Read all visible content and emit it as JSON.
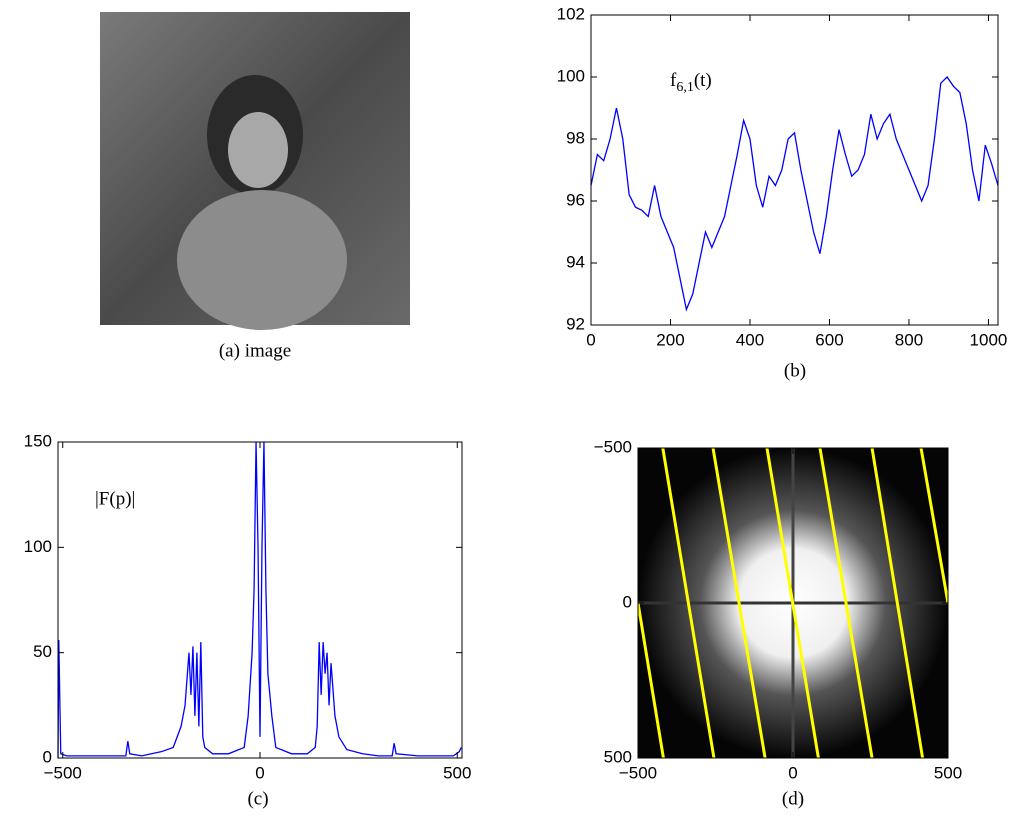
{
  "chart_data": [
    {
      "type": "image",
      "caption": "(a)  image"
    },
    {
      "type": "line",
      "caption": "(b)",
      "annotation": {
        "base": "f",
        "sub": "6,1",
        "arg": "(t)"
      },
      "x": [
        0,
        16,
        32,
        48,
        64,
        80,
        96,
        112,
        128,
        144,
        160,
        176,
        192,
        208,
        224,
        240,
        256,
        272,
        288,
        304,
        320,
        336,
        352,
        368,
        384,
        400,
        416,
        432,
        448,
        464,
        480,
        496,
        512,
        528,
        544,
        560,
        576,
        592,
        608,
        624,
        640,
        656,
        672,
        688,
        704,
        720,
        736,
        752,
        768,
        784,
        800,
        816,
        832,
        848,
        864,
        880,
        896,
        912,
        928,
        944,
        960,
        976,
        992,
        1008,
        1024
      ],
      "series": [
        {
          "color": "#0000ff",
          "values": [
            96.5,
            97.5,
            97.3,
            98,
            99,
            98,
            96.2,
            95.8,
            95.7,
            95.5,
            96.5,
            95.5,
            95,
            94.5,
            93.5,
            92.5,
            93,
            94,
            95,
            94.5,
            95,
            95.5,
            96.5,
            97.5,
            98.6,
            98,
            96.5,
            95.8,
            96.8,
            96.5,
            97,
            98,
            98.2,
            97,
            96,
            95,
            94.3,
            95.5,
            97,
            98.3,
            97.5,
            96.8,
            97,
            97.5,
            98.8,
            98,
            98.5,
            98.8,
            98,
            97.5,
            97,
            96.5,
            96,
            96.5,
            98,
            99.8,
            100,
            99.7,
            99.5,
            98.5,
            97,
            96,
            97.8,
            97.2,
            96.5
          ]
        }
      ],
      "xlim": [
        0,
        1024
      ],
      "ylim": [
        92,
        102
      ],
      "xticks": [
        0,
        200,
        400,
        600,
        800,
        1000
      ],
      "yticks": [
        92,
        94,
        96,
        98,
        100,
        102
      ]
    },
    {
      "type": "line",
      "caption": "(c)",
      "annotation": "|F(p)|",
      "x": [
        -512,
        -510,
        -505,
        -490,
        -400,
        -340,
        -335,
        -330,
        -300,
        -250,
        -220,
        -200,
        -190,
        -180,
        -175,
        -170,
        -165,
        -160,
        -155,
        -150,
        -145,
        -140,
        -120,
        -80,
        -40,
        -30,
        -20,
        -15,
        -10,
        -5,
        0,
        5,
        10,
        15,
        20,
        30,
        40,
        80,
        120,
        140,
        145,
        150,
        155,
        160,
        165,
        170,
        175,
        180,
        190,
        200,
        220,
        260,
        300,
        335,
        340,
        345,
        400,
        490,
        505,
        510
      ],
      "series": [
        {
          "color": "#0000ff",
          "values": [
            0,
            56,
            2,
            1,
            1,
            1,
            8,
            2,
            1,
            3,
            5,
            15,
            25,
            50,
            30,
            53,
            20,
            50,
            15,
            55,
            10,
            5,
            2,
            2,
            5,
            20,
            50,
            80,
            150,
            100,
            10,
            100,
            150,
            80,
            40,
            20,
            5,
            2,
            2,
            5,
            15,
            55,
            30,
            55,
            40,
            50,
            25,
            45,
            20,
            10,
            4,
            2,
            1,
            1,
            7,
            2,
            1,
            1,
            3,
            5
          ]
        }
      ],
      "xlim": [
        -512,
        512
      ],
      "ylim": [
        0,
        150
      ],
      "xticks": [
        {
          "value": -500,
          "label": "−500"
        },
        0,
        500
      ],
      "yticks": [
        0,
        50,
        100,
        150
      ]
    },
    {
      "type": "image",
      "caption": "(d)",
      "xlim": [
        -500,
        500
      ],
      "ylim": [
        500,
        -500
      ],
      "xticks": [
        {
          "value": -500,
          "label": "−500"
        },
        0,
        500
      ],
      "yticks": [
        {
          "value": -500,
          "label": "−500"
        },
        0,
        500
      ],
      "line_color": "#ffff00",
      "lines": [
        [
          -500,
          0,
          -418,
          500
        ],
        [
          -420,
          -500,
          -255,
          500
        ],
        [
          -258,
          -500,
          -90,
          500
        ],
        [
          -84,
          -500,
          82,
          500
        ],
        [
          87,
          -500,
          255,
          500
        ],
        [
          255,
          -500,
          418,
          500
        ],
        [
          413,
          -500,
          500,
          0
        ]
      ]
    }
  ]
}
